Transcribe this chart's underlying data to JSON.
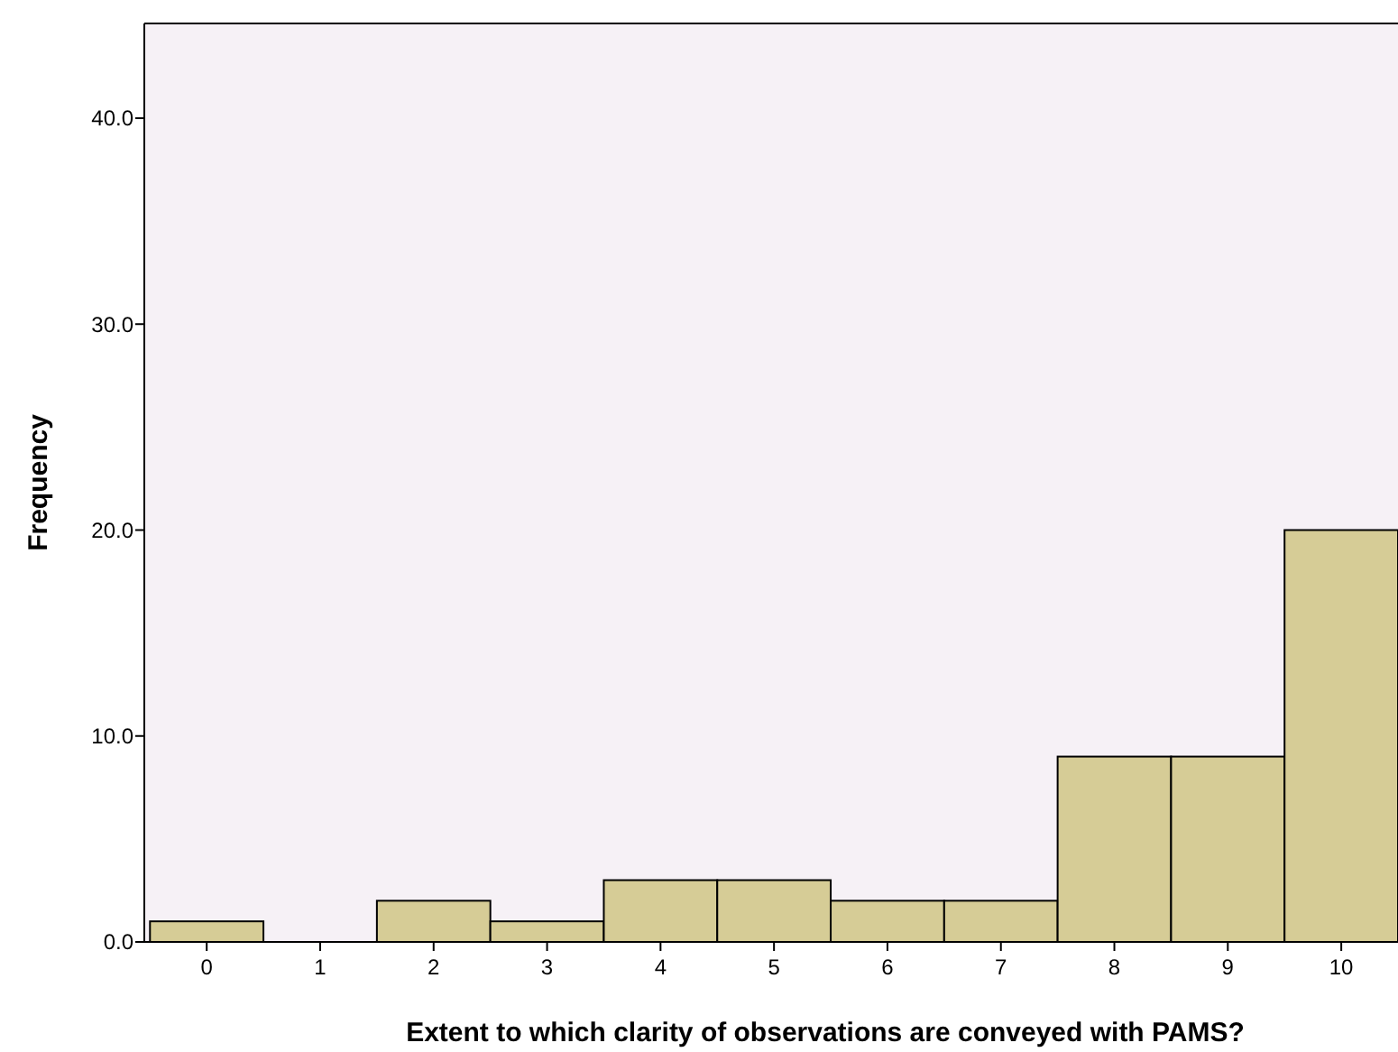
{
  "chart_data": {
    "type": "histogram",
    "xlabel": "Extent to which clarity of observations are conveyed with PAMS?",
    "ylabel": "Frequency",
    "bins": [
      -0.5,
      0.5,
      1.5,
      2.5,
      3.5,
      4.5,
      5.5,
      6.5,
      7.5,
      8.5,
      9.5,
      10.5
    ],
    "values": [
      1,
      0,
      2,
      1,
      3,
      3,
      2,
      2,
      9,
      9,
      20
    ],
    "color": "#d6cc96",
    "xlim": [
      -0.55,
      10.5
    ],
    "xticks": [
      0,
      1,
      2,
      3,
      4,
      5,
      6,
      7,
      8,
      9,
      10
    ],
    "ylim": [
      0,
      44.6
    ],
    "yticks": [
      {
        "value": 0,
        "label": "0.0"
      },
      {
        "value": 10,
        "label": "10.0"
      },
      {
        "value": 20,
        "label": "20.0"
      },
      {
        "value": 30,
        "label": "30.0"
      },
      {
        "value": 40,
        "label": "40.0"
      }
    ],
    "grid": false
  }
}
